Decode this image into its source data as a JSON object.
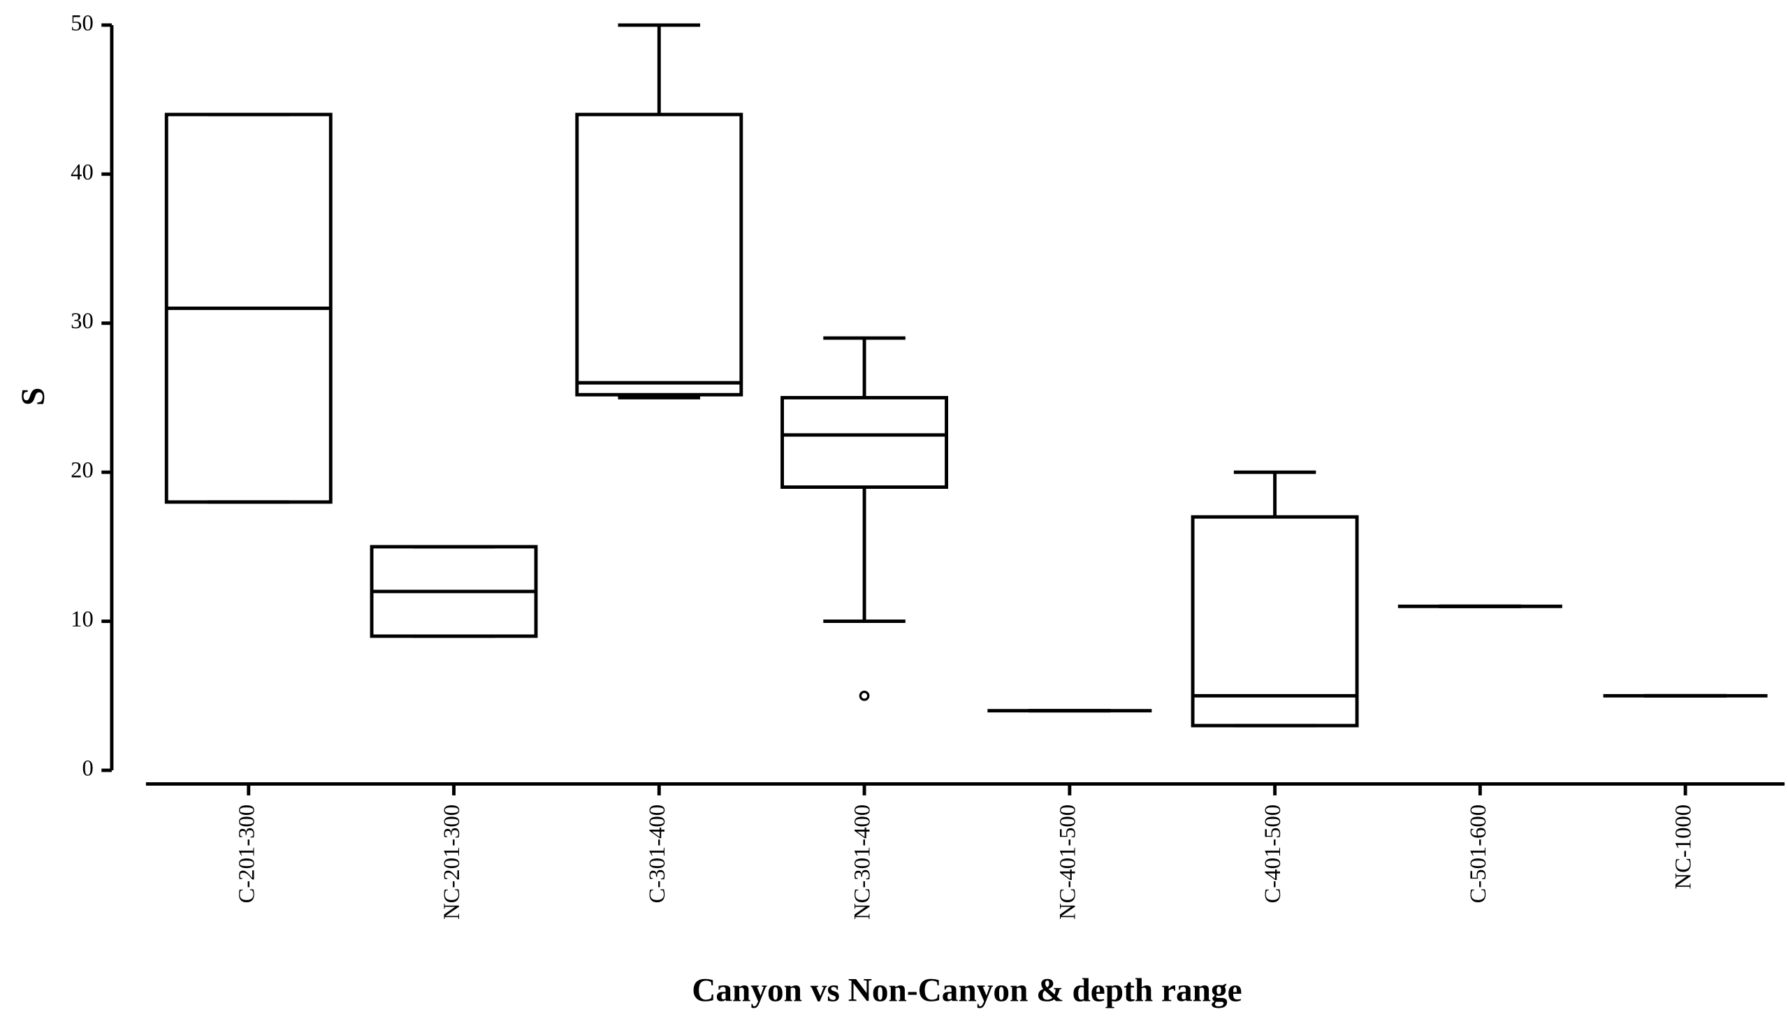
{
  "chart_data": {
    "type": "box",
    "x_label": "Canyon vs Non-Canyon & depth range",
    "y_label": "S",
    "categories": [
      "C-201-300",
      "NC-201-300",
      "C-301-400",
      "NC-301-400",
      "NC-401-500",
      "C-401-500",
      "C-501-600",
      "NC-1000"
    ],
    "min": [
      18,
      9,
      25,
      10,
      4,
      3,
      11,
      5
    ],
    "q1": [
      18,
      9,
      25.2,
      19,
      4,
      3,
      11,
      5
    ],
    "median": [
      31,
      12,
      26,
      22.5,
      4,
      5,
      11,
      5
    ],
    "q3": [
      44,
      15,
      44,
      25,
      4,
      17,
      11,
      5
    ],
    "max": [
      44,
      15,
      50,
      29,
      4,
      20,
      11,
      5
    ],
    "outliers": [
      [],
      [],
      [],
      [
        5
      ],
      [],
      [],
      [],
      []
    ],
    "color": "#000000",
    "ylim": [
      0,
      50
    ],
    "yticks": [
      0,
      10,
      20,
      30,
      40,
      50
    ]
  }
}
